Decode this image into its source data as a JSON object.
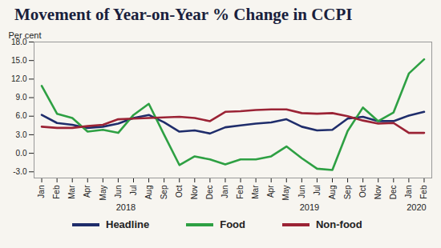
{
  "chart_data": {
    "type": "line",
    "title": "Movement of Year-on-Year % Change in CCPI",
    "y_label": "Per cent",
    "categories": [
      "Jan",
      "Feb",
      "Mar",
      "Apr",
      "May",
      "Jun",
      "Jul",
      "Aug",
      "Sep",
      "Oct",
      "Nov",
      "Dec",
      "Jan",
      "Feb",
      "Mar",
      "Apr",
      "May",
      "Jun",
      "Jul",
      "Aug",
      "Sep",
      "Oct",
      "Nov",
      "Dec",
      "Jan",
      "Feb"
    ],
    "x_groups": [
      {
        "label": "2018",
        "count": 12
      },
      {
        "label": "2019",
        "count": 12
      },
      {
        "label": "2020",
        "count": 2
      }
    ],
    "series": [
      {
        "name": "Headline",
        "color": "#1f2d6b",
        "values": [
          6.2,
          4.9,
          4.6,
          4.1,
          4.3,
          4.8,
          5.7,
          6.2,
          5.0,
          3.5,
          3.7,
          3.2,
          4.2,
          4.5,
          4.8,
          5.0,
          5.5,
          4.3,
          3.7,
          3.8,
          5.6,
          5.9,
          5.2,
          5.2,
          6.1,
          6.7
        ]
      },
      {
        "name": "Food",
        "color": "#2ea043",
        "values": [
          10.9,
          6.4,
          5.7,
          3.5,
          3.8,
          3.3,
          6.2,
          8.0,
          3.0,
          -1.9,
          -0.5,
          -1.0,
          -1.8,
          -1.0,
          -1.0,
          -0.5,
          1.1,
          -0.8,
          -2.5,
          -2.7,
          3.6,
          7.4,
          5.2,
          6.6,
          12.9,
          15.2
        ]
      },
      {
        "name": "Non-food",
        "color": "#9b2335",
        "values": [
          4.3,
          4.1,
          4.1,
          4.4,
          4.6,
          5.5,
          5.6,
          5.7,
          5.8,
          5.9,
          5.7,
          5.2,
          6.7,
          6.8,
          7.0,
          7.1,
          7.1,
          6.5,
          6.4,
          6.5,
          6.0,
          5.3,
          4.8,
          4.9,
          3.3,
          3.3
        ]
      }
    ],
    "ylim": [
      -4,
      18
    ],
    "yticks": [
      {
        "value": -3,
        "label": "-3.0"
      },
      {
        "value": 0,
        "label": "0.0"
      },
      {
        "value": 3,
        "label": "3.0"
      },
      {
        "value": 6,
        "label": "6.0"
      },
      {
        "value": 9,
        "label": "9.0"
      },
      {
        "value": 12,
        "label": "12.0"
      },
      {
        "value": 15,
        "label": "15.0"
      },
      {
        "value": 18,
        "label": "18.0"
      }
    ],
    "grid": false,
    "legend": "bottom"
  }
}
